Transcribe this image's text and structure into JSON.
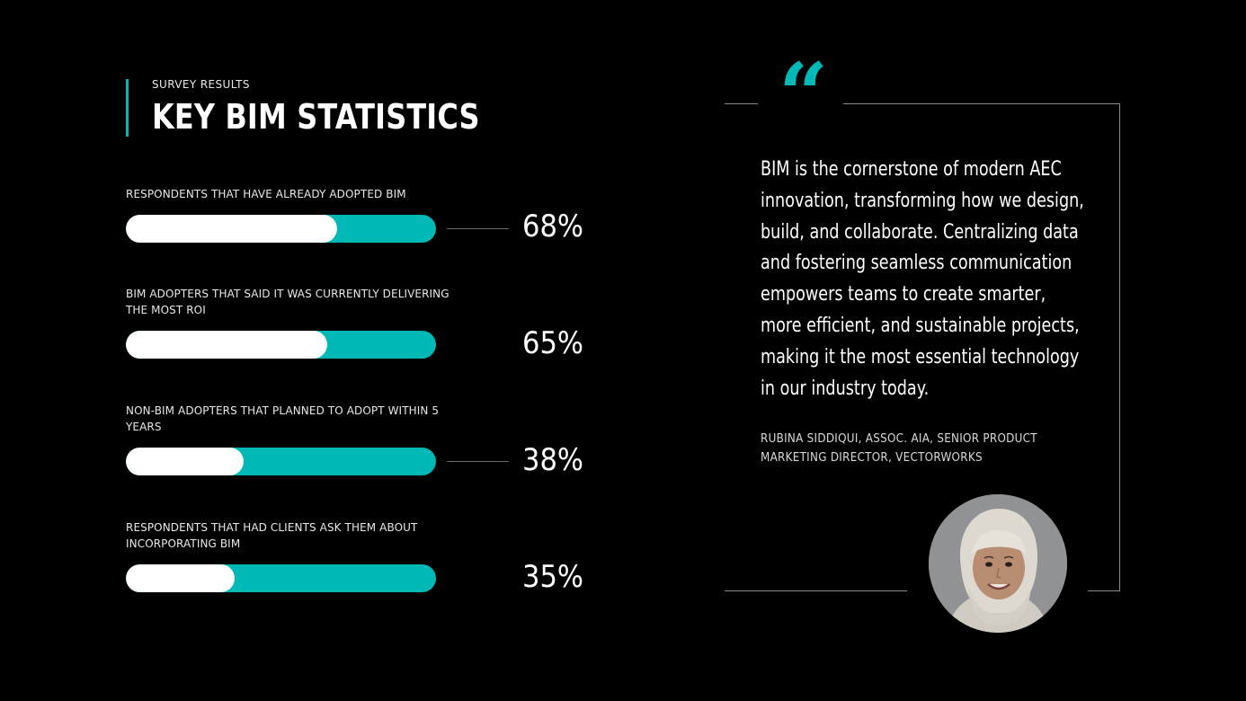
{
  "header": {
    "eyebrow": "SURVEY RESULTS",
    "title": "KEY BIM STATISTICS"
  },
  "colors": {
    "accent": "#00b8b5",
    "bar_fill": "#ffffff",
    "background": "#000000"
  },
  "chart_data": {
    "type": "bar",
    "orientation": "horizontal",
    "categories": [
      "RESPONDENTS THAT HAVE ALREADY ADOPTED BIM",
      "BIM ADOPTERS THAT SAID IT WAS CURRENTLY DELIVERING THE MOST ROI",
      "NON-BIM ADOPTERS THAT PLANNED TO ADOPT WITHIN 5 YEARS",
      "RESPONDENTS THAT HAD CLIENTS ASK THEM ABOUT INCORPORATING BIM"
    ],
    "values": [
      68,
      65,
      38,
      35
    ],
    "value_labels": [
      "68%",
      "65%",
      "38%",
      "35%"
    ],
    "ylim": [
      0,
      100
    ],
    "grid": false
  },
  "quote": {
    "text": "BIM is the cornerstone of modern AEC innovation, transforming how we design, build, and collaborate. Centralizing data and fostering seamless communication empowers teams to create smarter, more efficient, and sustainable projects, making it the most essential technology in our industry today.",
    "attribution_line1": "RUBINA SIDDIQUI, ASSOC. AIA, SENIOR PRODUCT",
    "attribution_line2": "MARKETING DIRECTOR, VECTORWORKS",
    "quote_icon": "quote-mark-icon",
    "avatar_icon": "person-portrait"
  }
}
